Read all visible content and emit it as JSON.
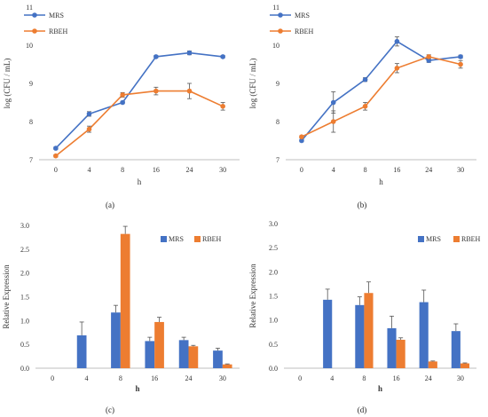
{
  "chart_data": [
    {
      "id": "a",
      "type": "line",
      "panel_label": "(a)",
      "xlabel": "h",
      "ylabel": "log (CFU / mL)",
      "categories": [
        "0",
        "4",
        "8",
        "16",
        "24",
        "30"
      ],
      "ylim": [
        7,
        11
      ],
      "yticks": [
        7,
        8,
        9,
        10,
        11
      ],
      "legend_position": "top-left",
      "grid": false,
      "series": [
        {
          "name": "MRS",
          "color": "#4472C4",
          "values": [
            7.3,
            8.2,
            8.5,
            9.7,
            9.8,
            9.7
          ],
          "errors": [
            0.03,
            0.06,
            0.03,
            0.03,
            0.05,
            0.03
          ]
        },
        {
          "name": "RBEH",
          "color": "#ED7D31",
          "values": [
            7.1,
            7.8,
            8.7,
            8.8,
            8.8,
            8.4
          ],
          "errors": [
            0.03,
            0.08,
            0.06,
            0.1,
            0.2,
            0.1
          ]
        }
      ]
    },
    {
      "id": "b",
      "type": "line",
      "panel_label": "(b)",
      "xlabel": "h",
      "ylabel": "log (CFU / mL)",
      "categories": [
        "0",
        "4",
        "8",
        "16",
        "24",
        "30"
      ],
      "ylim": [
        7,
        11
      ],
      "yticks": [
        7,
        8,
        9,
        10,
        11
      ],
      "legend_position": "top-left",
      "grid": false,
      "series": [
        {
          "name": "MRS",
          "color": "#4472C4",
          "values": [
            7.5,
            8.5,
            9.1,
            10.1,
            9.6,
            9.7
          ],
          "errors": [
            0.03,
            0.28,
            0.05,
            0.12,
            0.05,
            0.04
          ]
        },
        {
          "name": "RBEH",
          "color": "#ED7D31",
          "values": [
            7.6,
            8.0,
            8.4,
            9.4,
            9.7,
            9.5
          ],
          "errors": [
            0.03,
            0.28,
            0.1,
            0.12,
            0.05,
            0.1
          ]
        }
      ]
    },
    {
      "id": "c",
      "type": "bar",
      "panel_label": "(c)",
      "xlabel": "h",
      "ylabel": "Relative Expression",
      "categories": [
        "0",
        "4",
        "8",
        "16",
        "24",
        "30"
      ],
      "ylim": [
        0,
        3.0
      ],
      "yticks": [
        "0.0",
        "0.5",
        "1.0",
        "1.5",
        "2.0",
        "2.5",
        "3.0"
      ],
      "legend_position": "top-right",
      "grid": false,
      "series": [
        {
          "name": "MRS",
          "color": "#4472C4",
          "values": [
            0,
            0.69,
            1.17,
            0.57,
            0.59,
            0.37
          ],
          "errors": [
            0,
            0.28,
            0.15,
            0.08,
            0.06,
            0.05
          ]
        },
        {
          "name": "RBEH",
          "color": "#ED7D31",
          "values": [
            0,
            0,
            2.82,
            0.97,
            0.46,
            0.08
          ],
          "errors": [
            0,
            0,
            0.16,
            0.1,
            0.02,
            0.01
          ]
        }
      ]
    },
    {
      "id": "d",
      "type": "bar",
      "panel_label": "(d)",
      "xlabel": "h",
      "ylabel": "Relative Expression",
      "categories": [
        "0",
        "4",
        "8",
        "16",
        "24",
        "30"
      ],
      "ylim": [
        0,
        3.0
      ],
      "yticks": [
        "0.0",
        "0.5",
        "1.0",
        "1.5",
        "2.0",
        "2.5",
        "3.0"
      ],
      "legend_position": "top-right",
      "grid": false,
      "series": [
        {
          "name": "MRS",
          "color": "#4472C4",
          "values": [
            0,
            1.42,
            1.31,
            0.83,
            1.37,
            0.77
          ],
          "errors": [
            0,
            0.22,
            0.17,
            0.25,
            0.25,
            0.15
          ]
        },
        {
          "name": "RBEH",
          "color": "#ED7D31",
          "values": [
            0,
            0,
            1.56,
            0.59,
            0.14,
            0.1
          ],
          "errors": [
            0,
            0,
            0.23,
            0.04,
            0.01,
            0.01
          ]
        }
      ]
    }
  ]
}
